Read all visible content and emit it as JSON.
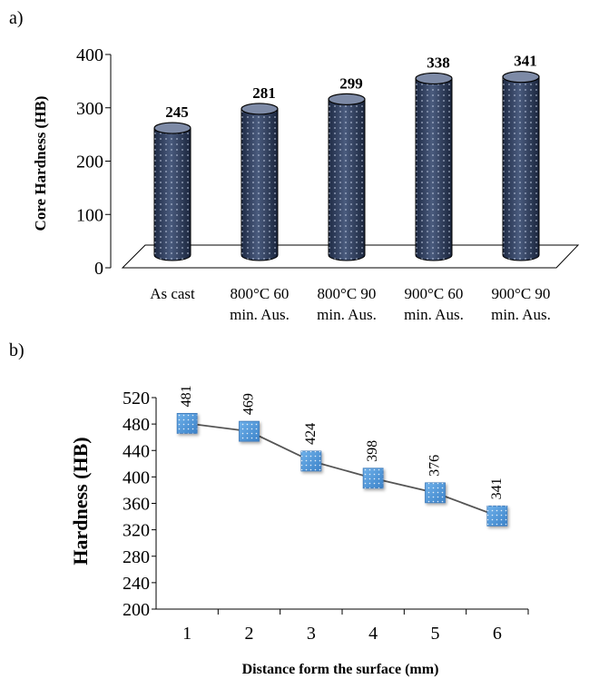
{
  "charts": {
    "a": {
      "panel_label": "a)",
      "chart_data": {
        "type": "bar",
        "style": "3d-cylinder",
        "categories": [
          [
            "As cast"
          ],
          [
            "800°C 60",
            "min. Aus."
          ],
          [
            "800°C 90",
            "min. Aus."
          ],
          [
            "900°C 60",
            "min. Aus."
          ],
          [
            "900°C 90",
            "min. Aus."
          ]
        ],
        "values": [
          245,
          281,
          299,
          338,
          341
        ],
        "value_labels": [
          "245",
          "281",
          "299",
          "338",
          "341"
        ],
        "ylabel": "Core Hardness (HB)",
        "xlabel": "",
        "ylim": [
          0,
          400
        ],
        "yticks": [
          0,
          100,
          200,
          300,
          400
        ],
        "ytick_labels": [
          "0",
          "100",
          "200",
          "300",
          "400"
        ],
        "grid": false,
        "bar_color": "#3a4a6a"
      }
    },
    "b": {
      "panel_label": "b)",
      "chart_data": {
        "type": "line",
        "x": [
          1,
          2,
          3,
          4,
          5,
          6
        ],
        "xtick_labels": [
          "1",
          "2",
          "3",
          "4",
          "5",
          "6"
        ],
        "y": [
          481,
          469,
          424,
          398,
          376,
          341
        ],
        "value_labels": [
          "481",
          "469",
          "424",
          "398",
          "376",
          "341"
        ],
        "xlabel": "Distance form the surface (mm)",
        "ylabel": "Hardness  (HB)",
        "ylim": [
          200,
          520
        ],
        "yticks": [
          200,
          240,
          280,
          320,
          360,
          400,
          440,
          480,
          520
        ],
        "ytick_labels": [
          "200",
          "240",
          "280",
          "320",
          "360",
          "400",
          "440",
          "480",
          "520"
        ],
        "grid": false,
        "marker": "square",
        "marker_color": "#4f93d3",
        "line_color": "#555555"
      }
    }
  }
}
